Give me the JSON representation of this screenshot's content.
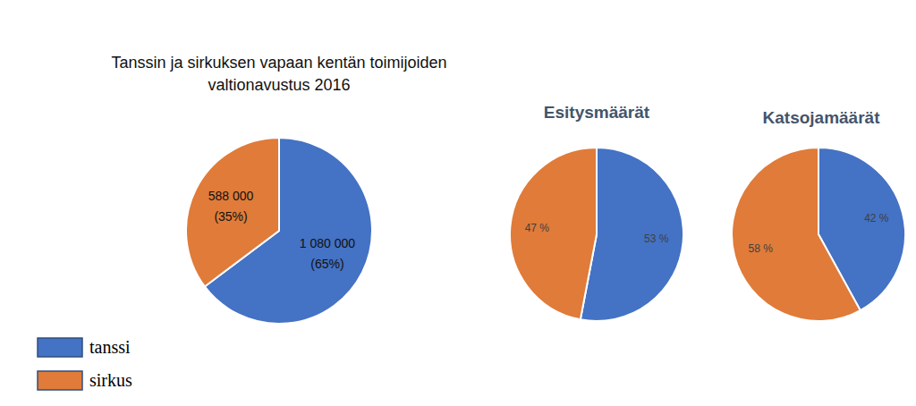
{
  "chart_data": [
    {
      "type": "pie",
      "title": "Tanssin ja sirkuksen vapaan kentän toimijoiden\nvaltionavustus 2016",
      "categories": [
        "tanssi",
        "sirkus"
      ],
      "values": [
        1080000,
        588000
      ],
      "value_labels": [
        "1 080 000\n(65%)",
        "588 000\n(35%)"
      ],
      "colors": [
        "#4472c4",
        "#e07b39"
      ],
      "data_labels": true,
      "legend": "bottom-left"
    },
    {
      "type": "pie",
      "title": "Esitysmäärät",
      "values": [
        53,
        47
      ],
      "value_labels": [
        "53 %",
        "47 %"
      ],
      "colors": [
        "#4472c4",
        "#e07b39"
      ],
      "data_labels": true
    },
    {
      "type": "pie",
      "title": "Katsojamäärät",
      "values": [
        42,
        58
      ],
      "value_labels": [
        "42 %",
        "58 %"
      ],
      "colors": [
        "#4472c4",
        "#e07b39"
      ],
      "data_labels": true
    }
  ]
}
